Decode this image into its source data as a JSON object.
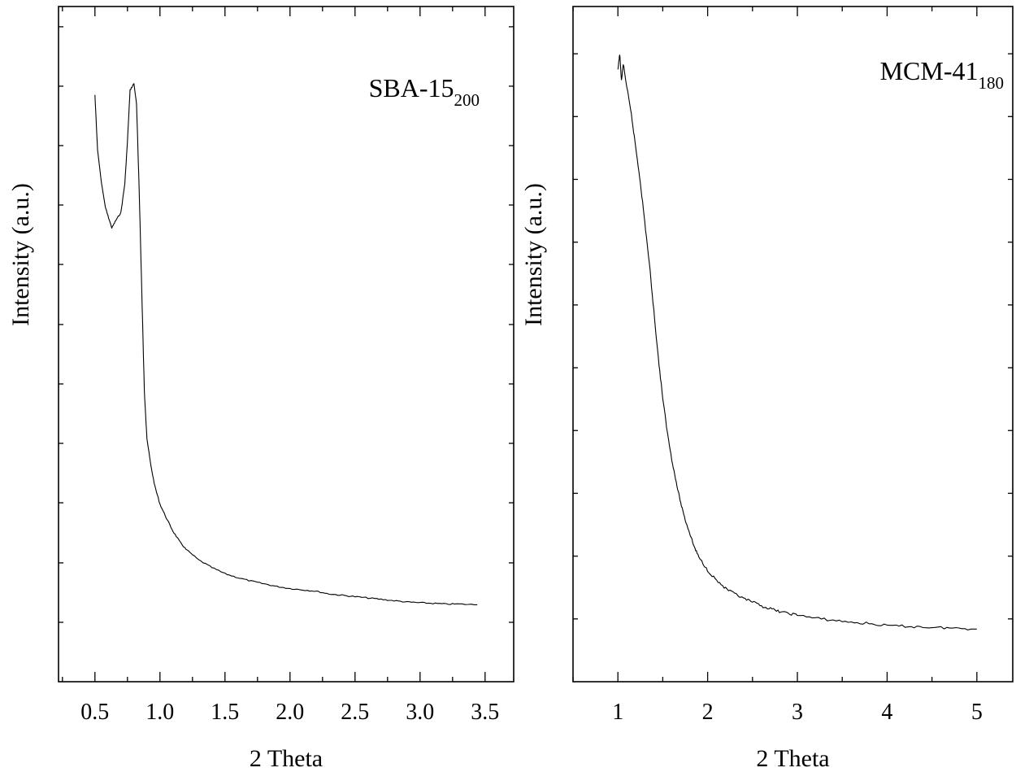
{
  "chart_data": [
    {
      "type": "line",
      "annotation": {
        "main": "SBA-15",
        "sub": "200"
      },
      "xlabel": "2 Theta",
      "ylabel": "Intensity (a.u.)",
      "xlim": [
        0.22,
        3.72
      ],
      "ylim": [
        0,
        100
      ],
      "y_tick_labels": "none",
      "grid": false,
      "x_ticks": [
        {
          "value": 0.5,
          "label": "0.5"
        },
        {
          "value": 1.0,
          "label": "1.0"
        },
        {
          "value": 1.5,
          "label": "1.5"
        },
        {
          "value": 2.0,
          "label": "2.0"
        },
        {
          "value": 2.5,
          "label": "2.5"
        },
        {
          "value": 3.0,
          "label": "3.0"
        },
        {
          "value": 3.5,
          "label": "3.5"
        }
      ],
      "x_minor_ticks": [
        0.25,
        0.75,
        1.25,
        1.75,
        2.25,
        2.75,
        3.25
      ],
      "y_minor_ticks": [
        8.8,
        17.6,
        26.5,
        35.3,
        44.1,
        52.9,
        61.8,
        70.6,
        79.4,
        88.2,
        97.0
      ],
      "series": [
        {
          "values": [
            [
              0.5,
              86.9
            ],
            [
              0.52,
              78.8
            ],
            [
              0.55,
              73.9
            ],
            [
              0.58,
              70.3
            ],
            [
              0.6,
              69.0
            ],
            [
              0.63,
              67.2
            ],
            [
              0.66,
              68.3
            ],
            [
              0.7,
              69.5
            ],
            [
              0.73,
              73.8
            ],
            [
              0.75,
              80.0
            ],
            [
              0.77,
              87.6
            ],
            [
              0.8,
              88.6
            ],
            [
              0.82,
              85.5
            ],
            [
              0.84,
              73.0
            ],
            [
              0.86,
              58.0
            ],
            [
              0.88,
              43.0
            ],
            [
              0.9,
              36.0
            ],
            [
              0.93,
              32.0
            ],
            [
              0.96,
              29.0
            ],
            [
              1.0,
              26.3
            ],
            [
              1.05,
              24.2
            ],
            [
              1.1,
              22.3
            ],
            [
              1.15,
              20.8
            ],
            [
              1.2,
              19.6
            ],
            [
              1.3,
              18.0
            ],
            [
              1.4,
              16.9
            ],
            [
              1.5,
              16.0
            ],
            [
              1.6,
              15.4
            ],
            [
              1.7,
              14.9
            ],
            [
              1.8,
              14.5
            ],
            [
              1.9,
              14.1
            ],
            [
              2.0,
              13.8
            ],
            [
              2.1,
              13.6
            ],
            [
              2.2,
              13.4
            ],
            [
              2.3,
              13.0
            ],
            [
              2.4,
              12.8
            ],
            [
              2.5,
              12.6
            ],
            [
              2.6,
              12.4
            ],
            [
              2.7,
              12.2
            ],
            [
              2.8,
              12.0
            ],
            [
              2.9,
              11.8
            ],
            [
              3.0,
              11.7
            ],
            [
              3.1,
              11.6
            ],
            [
              3.2,
              11.5
            ],
            [
              3.3,
              11.5
            ],
            [
              3.44,
              11.4
            ]
          ]
        }
      ]
    },
    {
      "type": "line",
      "annotation": {
        "main": "MCM-41",
        "sub": "180"
      },
      "xlabel": "2 Theta",
      "ylabel": "Intensity (a.u.)",
      "xlim": [
        0.5,
        5.4
      ],
      "ylim": [
        0,
        100
      ],
      "y_tick_labels": "none",
      "grid": false,
      "x_ticks": [
        {
          "value": 1,
          "label": "1"
        },
        {
          "value": 2,
          "label": "2"
        },
        {
          "value": 3,
          "label": "3"
        },
        {
          "value": 4,
          "label": "4"
        },
        {
          "value": 5,
          "label": "5"
        }
      ],
      "x_minor_ticks": [
        0.5,
        1.5,
        2.5,
        3.5,
        4.5
      ],
      "y_minor_ticks": [
        9.3,
        18.6,
        27.9,
        37.2,
        46.5,
        55.8,
        65.1,
        74.4,
        83.7,
        93.0
      ],
      "series": [
        {
          "values": [
            [
              1.0,
              90.5
            ],
            [
              1.02,
              93.0
            ],
            [
              1.04,
              89.0
            ],
            [
              1.06,
              91.5
            ],
            [
              1.1,
              88.0
            ],
            [
              1.15,
              84.0
            ],
            [
              1.2,
              79.0
            ],
            [
              1.25,
              74.0
            ],
            [
              1.3,
              68.0
            ],
            [
              1.35,
              62.0
            ],
            [
              1.4,
              55.0
            ],
            [
              1.45,
              48.0
            ],
            [
              1.5,
              42.0
            ],
            [
              1.55,
              37.0
            ],
            [
              1.6,
              33.0
            ],
            [
              1.65,
              29.5
            ],
            [
              1.7,
              26.5
            ],
            [
              1.75,
              24.0
            ],
            [
              1.8,
              22.0
            ],
            [
              1.85,
              20.0
            ],
            [
              1.9,
              18.5
            ],
            [
              2.0,
              16.5
            ],
            [
              2.1,
              15.0
            ],
            [
              2.2,
              13.8
            ],
            [
              2.3,
              13.0
            ],
            [
              2.4,
              12.3
            ],
            [
              2.5,
              11.8
            ],
            [
              2.6,
              11.2
            ],
            [
              2.7,
              10.8
            ],
            [
              2.8,
              10.4
            ],
            [
              2.9,
              10.1
            ],
            [
              3.0,
              9.9
            ],
            [
              3.2,
              9.4
            ],
            [
              3.4,
              9.1
            ],
            [
              3.6,
              8.8
            ],
            [
              3.8,
              8.6
            ],
            [
              4.0,
              8.3
            ],
            [
              4.2,
              8.2
            ],
            [
              4.4,
              8.1
            ],
            [
              4.6,
              8.0
            ],
            [
              4.8,
              7.9
            ],
            [
              5.0,
              7.8
            ]
          ]
        }
      ]
    }
  ]
}
